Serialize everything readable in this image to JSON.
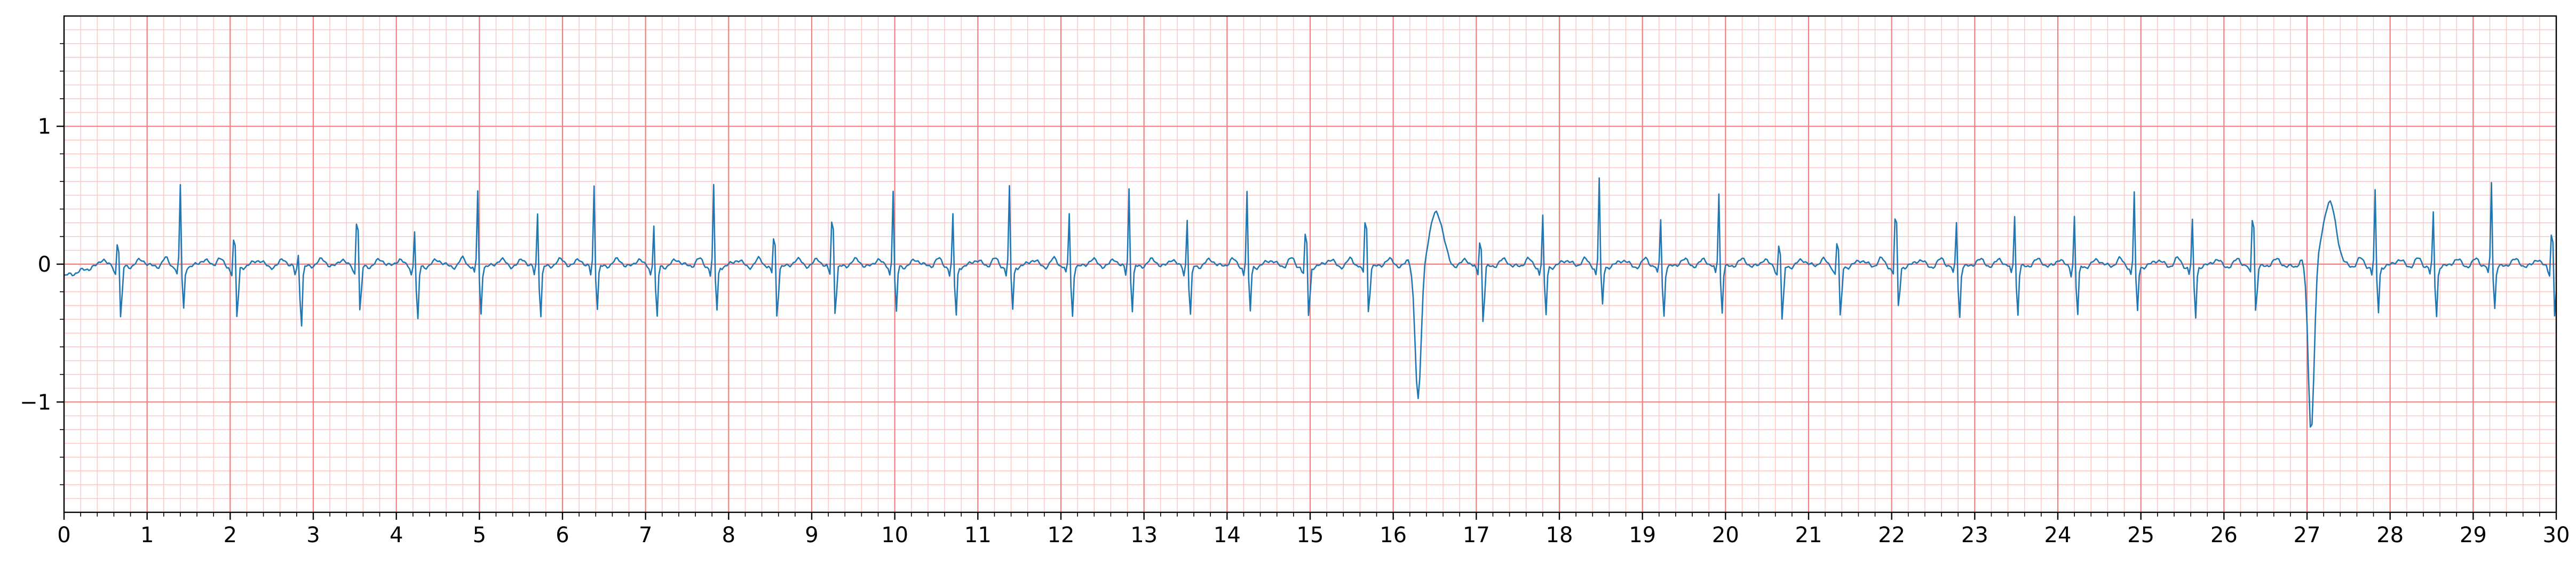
{
  "chart_data": {
    "type": "line",
    "title": "",
    "xlabel": "",
    "ylabel": "",
    "xlim": [
      0,
      30
    ],
    "ylim": [
      -1.8,
      1.8
    ],
    "x_ticks": [
      0,
      1,
      2,
      3,
      4,
      5,
      6,
      7,
      8,
      9,
      10,
      11,
      12,
      13,
      14,
      15,
      16,
      17,
      18,
      19,
      20,
      21,
      22,
      23,
      24,
      25,
      26,
      27,
      28,
      29,
      30
    ],
    "y_ticks": [
      {
        "value": 1,
        "label": "1"
      },
      {
        "value": 0,
        "label": "0"
      },
      {
        "value": -1,
        "label": "−1"
      }
    ],
    "grid": {
      "major_x_step": 1,
      "major_y_step": 1,
      "minor_x_step": 0.2,
      "minor_y_step": 0.1
    },
    "colors": {
      "major_grid": "#f08080",
      "minor_grid": "#fbc4c4",
      "trace": "#1f77b4",
      "axis": "#000000"
    },
    "series": [
      {
        "sampling_interval_s": 0.02,
        "beats": [
          {
            "t": 0.65,
            "amp": 0.3,
            "s": -0.4
          },
          {
            "t": 1.4,
            "amp": 0.6,
            "s": -0.33
          },
          {
            "t": 2.05,
            "amp": 0.33,
            "s": -0.4
          },
          {
            "t": 2.82,
            "amp": 0.1,
            "s": -0.45
          },
          {
            "t": 3.53,
            "amp": 0.55,
            "s": -0.35
          },
          {
            "t": 4.22,
            "amp": 0.28,
            "s": -0.42
          },
          {
            "t": 4.98,
            "amp": 0.56,
            "s": -0.36
          },
          {
            "t": 5.7,
            "amp": 0.4,
            "s": -0.38
          },
          {
            "t": 6.38,
            "amp": 0.6,
            "s": -0.32
          },
          {
            "t": 7.1,
            "amp": 0.32,
            "s": -0.4
          },
          {
            "t": 7.82,
            "amp": 0.59,
            "s": -0.34
          },
          {
            "t": 8.55,
            "amp": 0.35,
            "s": -0.38
          },
          {
            "t": 9.25,
            "amp": 0.55,
            "s": -0.35
          },
          {
            "t": 9.98,
            "amp": 0.57,
            "s": -0.36
          },
          {
            "t": 10.7,
            "amp": 0.38,
            "s": -0.38
          },
          {
            "t": 11.38,
            "amp": 0.58,
            "s": -0.33
          },
          {
            "t": 12.1,
            "amp": 0.4,
            "s": -0.38
          },
          {
            "t": 12.82,
            "amp": 0.58,
            "s": -0.34
          },
          {
            "t": 13.52,
            "amp": 0.36,
            "s": -0.38
          },
          {
            "t": 14.24,
            "amp": 0.55,
            "s": -0.35
          },
          {
            "t": 14.95,
            "amp": 0.37,
            "s": -0.38
          },
          {
            "t": 15.67,
            "amp": 0.55,
            "s": -0.35
          },
          {
            "t": 16.3,
            "amp": 0.05,
            "s": -0.98,
            "wide": true,
            "t_wave": 0.4
          },
          {
            "t": 17.05,
            "amp": 0.32,
            "s": -0.42
          },
          {
            "t": 17.8,
            "amp": 0.38,
            "s": -0.38
          },
          {
            "t": 18.48,
            "amp": 0.65,
            "s": -0.3
          },
          {
            "t": 19.22,
            "amp": 0.36,
            "s": -0.38
          },
          {
            "t": 19.92,
            "amp": 0.55,
            "s": -0.35
          },
          {
            "t": 20.65,
            "amp": 0.27,
            "s": -0.42
          },
          {
            "t": 21.35,
            "amp": 0.3,
            "s": -0.4
          },
          {
            "t": 22.05,
            "amp": 0.58,
            "s": -0.32
          },
          {
            "t": 22.78,
            "amp": 0.34,
            "s": -0.39
          },
          {
            "t": 23.48,
            "amp": 0.39,
            "s": -0.37
          },
          {
            "t": 24.2,
            "amp": 0.38,
            "s": -0.38
          },
          {
            "t": 24.92,
            "amp": 0.55,
            "s": -0.35
          },
          {
            "t": 25.62,
            "amp": 0.34,
            "s": -0.39
          },
          {
            "t": 26.35,
            "amp": 0.58,
            "s": -0.34
          },
          {
            "t": 27.05,
            "amp": 0.05,
            "s": -1.2,
            "wide": true,
            "t_wave": 0.47
          },
          {
            "t": 27.82,
            "amp": 0.55,
            "s": -0.35
          },
          {
            "t": 28.52,
            "amp": 0.4,
            "s": -0.38
          },
          {
            "t": 29.22,
            "amp": 0.63,
            "s": -0.32
          },
          {
            "t": 29.95,
            "amp": 0.4,
            "s": -0.38
          }
        ]
      }
    ]
  }
}
